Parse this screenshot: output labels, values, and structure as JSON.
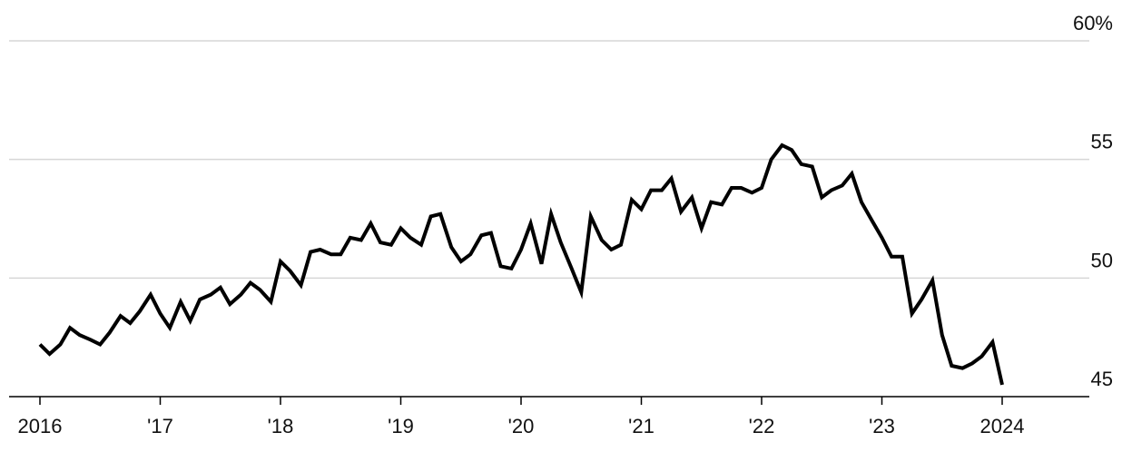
{
  "chart_data": {
    "type": "line",
    "title": "",
    "xlabel": "",
    "ylabel": "",
    "ylim": [
      45,
      60
    ],
    "xlim": [
      2016,
      2024.4
    ],
    "grid": true,
    "y_ticks": [
      {
        "value": 45,
        "label": "45"
      },
      {
        "value": 50,
        "label": "50"
      },
      {
        "value": 55,
        "label": "55"
      },
      {
        "value": 60,
        "label": "60%"
      }
    ],
    "x_ticks": [
      {
        "value": 2016,
        "label": "2016"
      },
      {
        "value": 2017,
        "label": "'17"
      },
      {
        "value": 2018,
        "label": "'18"
      },
      {
        "value": 2019,
        "label": "'19"
      },
      {
        "value": 2020,
        "label": "'20"
      },
      {
        "value": 2021,
        "label": "'21"
      },
      {
        "value": 2022,
        "label": "'22"
      },
      {
        "value": 2023,
        "label": "'23"
      },
      {
        "value": 2024,
        "label": "2024"
      }
    ],
    "line_color": "#000000",
    "grid_color": "#d6d6d6",
    "series": [
      {
        "x": [
          2016.0,
          2016.08,
          2016.17,
          2016.25,
          2016.33,
          2016.42,
          2016.5,
          2016.58,
          2016.67,
          2016.75,
          2016.83,
          2016.92,
          2017.0,
          2017.08,
          2017.17,
          2017.25,
          2017.33,
          2017.42,
          2017.5,
          2017.58,
          2017.67,
          2017.75,
          2017.83,
          2017.92,
          2018.0,
          2018.08,
          2018.17,
          2018.25,
          2018.33,
          2018.42,
          2018.5,
          2018.58,
          2018.67,
          2018.75,
          2018.83,
          2018.92,
          2019.0,
          2019.08,
          2019.17,
          2019.25,
          2019.33,
          2019.42,
          2019.5,
          2019.58,
          2019.67,
          2019.75,
          2019.83,
          2019.92,
          2020.0,
          2020.08,
          2020.17,
          2020.25,
          2020.33,
          2020.42,
          2020.5,
          2020.58,
          2020.67,
          2020.75,
          2020.83,
          2020.92,
          2021.0,
          2021.08,
          2021.17,
          2021.25,
          2021.33,
          2021.42,
          2021.5,
          2021.58,
          2021.67,
          2021.75,
          2021.83,
          2021.92,
          2022.0,
          2022.08,
          2022.17,
          2022.25,
          2022.33,
          2022.42,
          2022.5,
          2022.58,
          2022.67,
          2022.75,
          2022.83,
          2022.92,
          2023.0,
          2023.08,
          2023.17,
          2023.25,
          2023.33,
          2023.42,
          2023.5,
          2023.58,
          2023.67,
          2023.75,
          2023.83,
          2023.92,
          2024.0
        ],
        "values": [
          47.2,
          46.8,
          47.2,
          47.9,
          47.6,
          47.4,
          47.2,
          47.7,
          48.4,
          48.1,
          48.6,
          49.3,
          48.5,
          47.9,
          49.0,
          48.2,
          49.1,
          49.3,
          49.6,
          48.9,
          49.3,
          49.8,
          49.5,
          49.0,
          50.7,
          50.3,
          49.7,
          51.1,
          51.2,
          51.0,
          51.0,
          51.7,
          51.6,
          52.3,
          51.5,
          51.4,
          52.1,
          51.7,
          51.4,
          52.6,
          52.7,
          51.3,
          50.7,
          51.0,
          51.8,
          51.9,
          50.5,
          50.4,
          51.2,
          52.3,
          50.6,
          52.7,
          51.5,
          50.4,
          49.4,
          52.6,
          51.6,
          51.2,
          51.4,
          53.3,
          52.9,
          53.7,
          53.7,
          54.2,
          52.8,
          53.4,
          52.1,
          53.2,
          53.1,
          53.8,
          53.8,
          53.6,
          53.8,
          55.0,
          55.6,
          55.4,
          54.8,
          54.7,
          53.4,
          53.7,
          53.9,
          54.4,
          53.2,
          52.4,
          51.7,
          50.9,
          50.9,
          48.5,
          49.1,
          49.9,
          47.6,
          46.3,
          46.2,
          46.4,
          46.7,
          47.3,
          45.5
        ]
      }
    ]
  }
}
